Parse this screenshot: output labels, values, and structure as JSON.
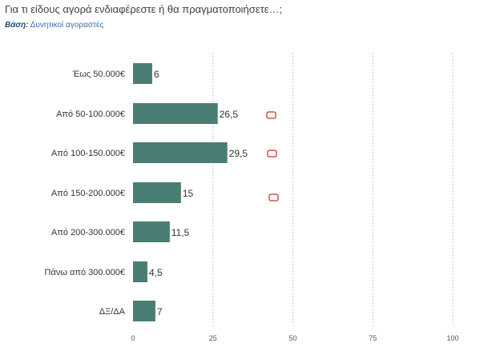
{
  "header": {
    "question": "Για τι είδους αγορά ενδιαφέρεστε ή θα πραγματοποιήσετε…;",
    "base_label": "Βάση:",
    "base_value": "Δυνητικοί αγοραστές"
  },
  "colors": {
    "bar": "#4a7d74",
    "marker": "#c0392b",
    "grid": "#c8c8c8"
  },
  "chart_data": {
    "type": "bar",
    "orientation": "horizontal",
    "categories": [
      "Έως 50.000€",
      "Από 50-100.000€",
      "Από 100-150.000€",
      "Από 150-200.000€",
      "Από 200-300.000€",
      "Πάνω από 300.000€",
      "ΔΞ/ΔΑ"
    ],
    "values": [
      6,
      26.5,
      29.5,
      15,
      11.5,
      4.5,
      7
    ],
    "value_labels": [
      "6",
      "26,5",
      "29,5",
      "15",
      "11,5",
      "4,5",
      "7"
    ],
    "xlim": [
      0,
      100
    ],
    "xticks": [
      0,
      25,
      50,
      75,
      100
    ],
    "grid": true,
    "grid_style": "dotted-vertical",
    "markers_at_categories": [
      1,
      2,
      3
    ]
  }
}
